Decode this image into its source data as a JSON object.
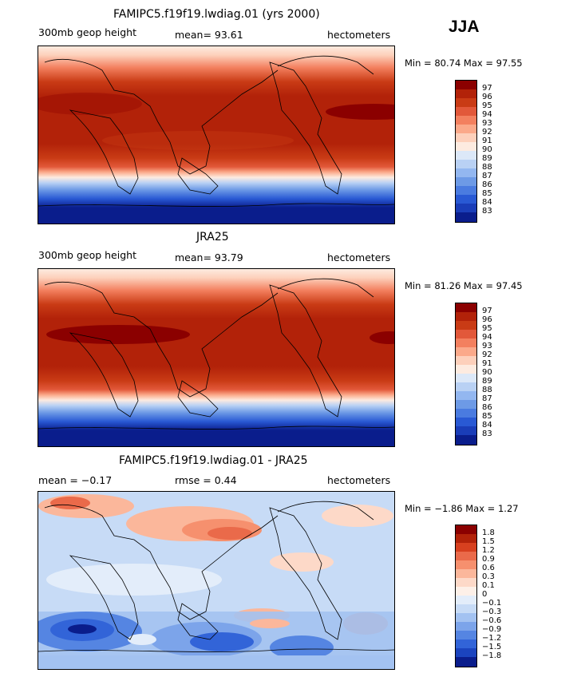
{
  "season": "JJA",
  "panels": [
    {
      "title": "FAMIPC5.f19f19.lwdiag.01 (yrs 2000)",
      "left_label": "300mb geop height",
      "center_label": "mean=   93.61",
      "right_label": "hectometers",
      "min_max": "Min =   80.74  Max =   97.55",
      "colorbar_labels": [
        "97",
        "96",
        "95",
        "94",
        "93",
        "92",
        "91",
        "90",
        "89",
        "88",
        "87",
        "86",
        "85",
        "84",
        "83"
      ]
    },
    {
      "title": "JRA25",
      "left_label": "300mb geop height",
      "center_label": "mean=   93.79",
      "right_label": "hectometers",
      "min_max": "Min =   81.26  Max =   97.45",
      "colorbar_labels": [
        "97",
        "96",
        "95",
        "94",
        "93",
        "92",
        "91",
        "90",
        "89",
        "88",
        "87",
        "86",
        "85",
        "84",
        "83"
      ]
    },
    {
      "title": "FAMIPC5.f19f19.lwdiag.01 - JRA25",
      "left_label": "mean =   −0.17",
      "center_label": "rmse =     0.44",
      "right_label": "hectometers",
      "min_max": "Min =   −1.86  Max =     1.27",
      "colorbar_labels": [
        "1.8",
        "1.5",
        "1.2",
        "0.9",
        "0.6",
        "0.3",
        "0.1",
        "0",
        "−0.1",
        "−0.3",
        "−0.6",
        "−0.9",
        "−1.2",
        "−1.5",
        "−1.8"
      ]
    }
  ],
  "colors": {
    "abs_scale": [
      "#8b0000",
      "#b22209",
      "#c93b15",
      "#e2583a",
      "#f3805f",
      "#fba98a",
      "#fdd0bb",
      "#fdebe0",
      "#dce8f8",
      "#b9d1f4",
      "#93b7f0",
      "#6d9ae6",
      "#4a7be0",
      "#2959d4",
      "#1a3db8",
      "#0a1d8c"
    ],
    "diff_scale": [
      "#8b0000",
      "#b22209",
      "#d7401f",
      "#ea6a4a",
      "#f6906e",
      "#fbb79b",
      "#fdd9c8",
      "#fdf0e8",
      "#e3edfa",
      "#c7dbf6",
      "#a3c2f1",
      "#7ca4ea",
      "#5585e2",
      "#3264d8",
      "#1b44bf",
      "#0a1d8c"
    ]
  }
}
